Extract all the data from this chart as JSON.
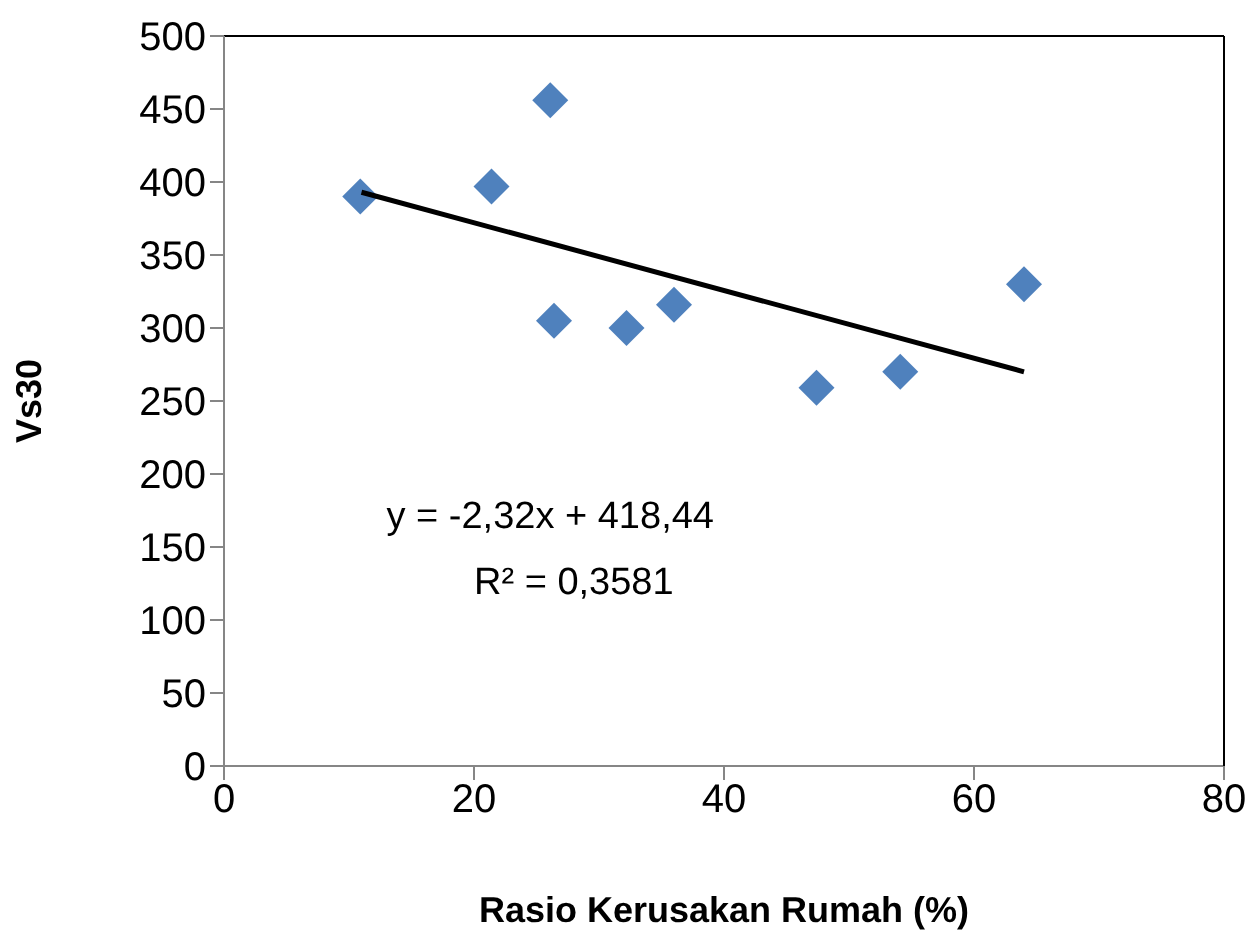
{
  "chart_data": {
    "type": "scatter",
    "xlabel": "Rasio Kerusakan Rumah (%)",
    "ylabel": "Vs30",
    "xlim": [
      0,
      80
    ],
    "xticks": [
      0,
      20,
      40,
      60,
      80
    ],
    "ylim": [
      0,
      500
    ],
    "yticks": [
      0,
      50,
      100,
      150,
      200,
      250,
      300,
      350,
      400,
      450,
      500
    ],
    "grid": false,
    "series": [
      {
        "color": "#4f81bd",
        "marker": "diamond",
        "x": [
          10.9,
          21.4,
          26.1,
          26.4,
          32.2,
          36,
          47.4,
          54.1,
          64
        ],
        "values": [
          390,
          397,
          456,
          305,
          300,
          316,
          259,
          270,
          330
        ]
      },
      {
        "type": "line",
        "color": "#000000",
        "marker": "none",
        "line_style": "solid",
        "x": [
          11,
          64
        ],
        "values": [
          393,
          270
        ]
      }
    ],
    "annotations": [
      "y = -2,32x + 418,44",
      "R² = 0,3581"
    ]
  }
}
